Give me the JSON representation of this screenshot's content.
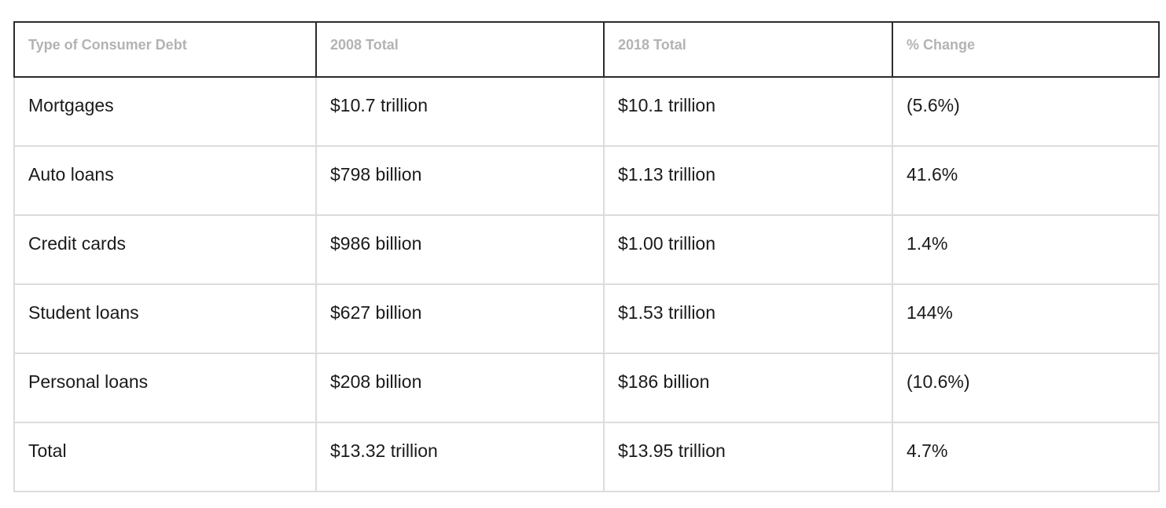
{
  "table": {
    "headers": [
      "Type of Consumer Debt",
      "2008 Total",
      "2018 Total",
      "% Change"
    ],
    "rows": [
      [
        "Mortgages",
        "$10.7 trillion",
        "$10.1 trillion",
        "(5.6%)"
      ],
      [
        "Auto loans",
        "$798 billion",
        "$1.13 trillion",
        "41.6%"
      ],
      [
        "Credit cards",
        "$986 billion",
        "$1.00 trillion",
        "1.4%"
      ],
      [
        "Student loans",
        "$627 billion",
        "$1.53 trillion",
        "144%"
      ],
      [
        "Personal loans",
        "$208 billion",
        "$186 billion",
        "(10.6%)"
      ],
      [
        "Total",
        "$13.32 trillion",
        "$13.95 trillion",
        "4.7%"
      ]
    ]
  },
  "colors": {
    "header_text": "#b3b3b3",
    "header_border": "#2b2b2b",
    "cell_border": "#dcdcdc",
    "cell_text": "#1a1a1a"
  }
}
